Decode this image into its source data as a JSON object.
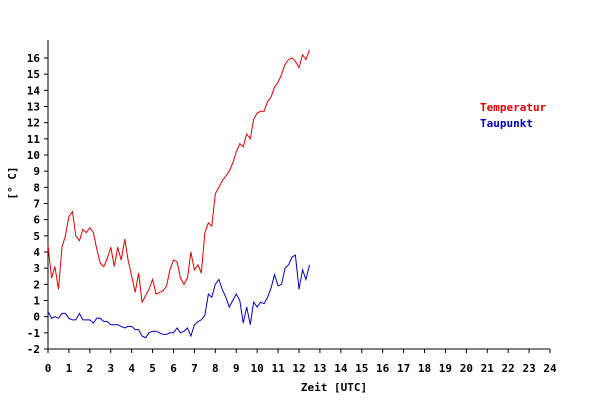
{
  "chart_data": {
    "type": "line",
    "title": "",
    "xlabel": "Zeit [UTC]",
    "ylabel": "[° C]",
    "xlim": [
      0,
      24
    ],
    "ylim": [
      -2,
      17
    ],
    "x_ticks": [
      0,
      1,
      2,
      3,
      4,
      5,
      6,
      7,
      8,
      9,
      10,
      11,
      12,
      13,
      14,
      15,
      16,
      17,
      18,
      19,
      20,
      21,
      22,
      23,
      24
    ],
    "y_ticks": [
      -2,
      -1,
      0,
      1,
      2,
      3,
      4,
      5,
      6,
      7,
      8,
      9,
      10,
      11,
      12,
      13,
      14,
      15,
      16
    ],
    "grid": false,
    "legend_position": "right",
    "series": [
      {
        "name": "Temperatur",
        "color": "#dd0000",
        "points": [
          [
            0.0,
            4.4
          ],
          [
            0.17,
            2.4
          ],
          [
            0.33,
            3.1
          ],
          [
            0.5,
            1.7
          ],
          [
            0.67,
            4.3
          ],
          [
            0.83,
            5.0
          ],
          [
            1.0,
            6.2
          ],
          [
            1.17,
            6.5
          ],
          [
            1.33,
            5.0
          ],
          [
            1.5,
            4.7
          ],
          [
            1.67,
            5.4
          ],
          [
            1.83,
            5.2
          ],
          [
            2.0,
            5.5
          ],
          [
            2.17,
            5.2
          ],
          [
            2.33,
            4.2
          ],
          [
            2.5,
            3.3
          ],
          [
            2.67,
            3.1
          ],
          [
            2.83,
            3.6
          ],
          [
            3.0,
            4.3
          ],
          [
            3.17,
            3.1
          ],
          [
            3.33,
            4.3
          ],
          [
            3.5,
            3.5
          ],
          [
            3.67,
            4.8
          ],
          [
            3.83,
            3.5
          ],
          [
            4.0,
            2.5
          ],
          [
            4.17,
            1.5
          ],
          [
            4.33,
            2.7
          ],
          [
            4.5,
            0.9
          ],
          [
            4.67,
            1.3
          ],
          [
            4.83,
            1.7
          ],
          [
            5.0,
            2.3
          ],
          [
            5.17,
            1.4
          ],
          [
            5.33,
            1.5
          ],
          [
            5.5,
            1.6
          ],
          [
            5.67,
            1.9
          ],
          [
            5.83,
            2.9
          ],
          [
            6.0,
            3.5
          ],
          [
            6.17,
            3.4
          ],
          [
            6.33,
            2.4
          ],
          [
            6.5,
            2.0
          ],
          [
            6.67,
            2.4
          ],
          [
            6.83,
            4.0
          ],
          [
            7.0,
            2.9
          ],
          [
            7.17,
            3.2
          ],
          [
            7.33,
            2.7
          ],
          [
            7.5,
            5.2
          ],
          [
            7.67,
            5.8
          ],
          [
            7.83,
            5.6
          ],
          [
            8.0,
            7.6
          ],
          [
            8.17,
            8.0
          ],
          [
            8.33,
            8.4
          ],
          [
            8.5,
            8.7
          ],
          [
            8.67,
            9.0
          ],
          [
            8.83,
            9.5
          ],
          [
            9.0,
            10.2
          ],
          [
            9.17,
            10.7
          ],
          [
            9.33,
            10.5
          ],
          [
            9.5,
            11.3
          ],
          [
            9.67,
            11.0
          ],
          [
            9.83,
            12.2
          ],
          [
            10.0,
            12.6
          ],
          [
            10.17,
            12.7
          ],
          [
            10.33,
            12.7
          ],
          [
            10.5,
            13.3
          ],
          [
            10.67,
            13.6
          ],
          [
            10.83,
            14.2
          ],
          [
            11.0,
            14.5
          ],
          [
            11.17,
            15.0
          ],
          [
            11.33,
            15.6
          ],
          [
            11.5,
            15.9
          ],
          [
            11.67,
            16.0
          ],
          [
            11.83,
            15.8
          ],
          [
            12.0,
            15.4
          ],
          [
            12.17,
            16.2
          ],
          [
            12.33,
            15.9
          ],
          [
            12.5,
            16.5
          ]
        ]
      },
      {
        "name": "Taupunkt",
        "color": "#0000bb",
        "points": [
          [
            0.0,
            0.3
          ],
          [
            0.17,
            -0.1
          ],
          [
            0.33,
            0.0
          ],
          [
            0.5,
            -0.1
          ],
          [
            0.67,
            0.2
          ],
          [
            0.83,
            0.2
          ],
          [
            1.0,
            -0.1
          ],
          [
            1.17,
            -0.2
          ],
          [
            1.33,
            -0.2
          ],
          [
            1.5,
            0.2
          ],
          [
            1.67,
            -0.2
          ],
          [
            1.83,
            -0.2
          ],
          [
            2.0,
            -0.2
          ],
          [
            2.17,
            -0.4
          ],
          [
            2.33,
            -0.1
          ],
          [
            2.5,
            -0.1
          ],
          [
            2.67,
            -0.3
          ],
          [
            2.83,
            -0.3
          ],
          [
            3.0,
            -0.5
          ],
          [
            3.17,
            -0.5
          ],
          [
            3.33,
            -0.5
          ],
          [
            3.5,
            -0.6
          ],
          [
            3.67,
            -0.7
          ],
          [
            3.83,
            -0.6
          ],
          [
            4.0,
            -0.6
          ],
          [
            4.17,
            -0.8
          ],
          [
            4.33,
            -0.8
          ],
          [
            4.5,
            -1.2
          ],
          [
            4.67,
            -1.3
          ],
          [
            4.83,
            -1.0
          ],
          [
            5.0,
            -0.9
          ],
          [
            5.17,
            -0.9
          ],
          [
            5.33,
            -1.0
          ],
          [
            5.5,
            -1.1
          ],
          [
            5.67,
            -1.1
          ],
          [
            5.83,
            -1.0
          ],
          [
            6.0,
            -1.0
          ],
          [
            6.17,
            -0.7
          ],
          [
            6.33,
            -1.0
          ],
          [
            6.5,
            -0.9
          ],
          [
            6.67,
            -0.7
          ],
          [
            6.83,
            -1.2
          ],
          [
            7.0,
            -0.5
          ],
          [
            7.17,
            -0.3
          ],
          [
            7.33,
            -0.2
          ],
          [
            7.5,
            0.1
          ],
          [
            7.67,
            1.4
          ],
          [
            7.83,
            1.2
          ],
          [
            8.0,
            2.0
          ],
          [
            8.17,
            2.3
          ],
          [
            8.33,
            1.7
          ],
          [
            8.5,
            1.2
          ],
          [
            8.67,
            0.6
          ],
          [
            8.83,
            1.0
          ],
          [
            9.0,
            1.4
          ],
          [
            9.17,
            1.0
          ],
          [
            9.33,
            -0.4
          ],
          [
            9.5,
            0.6
          ],
          [
            9.67,
            -0.5
          ],
          [
            9.83,
            0.9
          ],
          [
            10.0,
            0.6
          ],
          [
            10.17,
            0.9
          ],
          [
            10.33,
            0.8
          ],
          [
            10.5,
            1.2
          ],
          [
            10.67,
            1.8
          ],
          [
            10.83,
            2.6
          ],
          [
            11.0,
            1.9
          ],
          [
            11.17,
            2.0
          ],
          [
            11.33,
            3.0
          ],
          [
            11.5,
            3.2
          ],
          [
            11.67,
            3.7
          ],
          [
            11.83,
            3.8
          ],
          [
            12.0,
            1.7
          ],
          [
            12.17,
            2.9
          ],
          [
            12.33,
            2.3
          ],
          [
            12.5,
            3.2
          ]
        ]
      }
    ]
  }
}
